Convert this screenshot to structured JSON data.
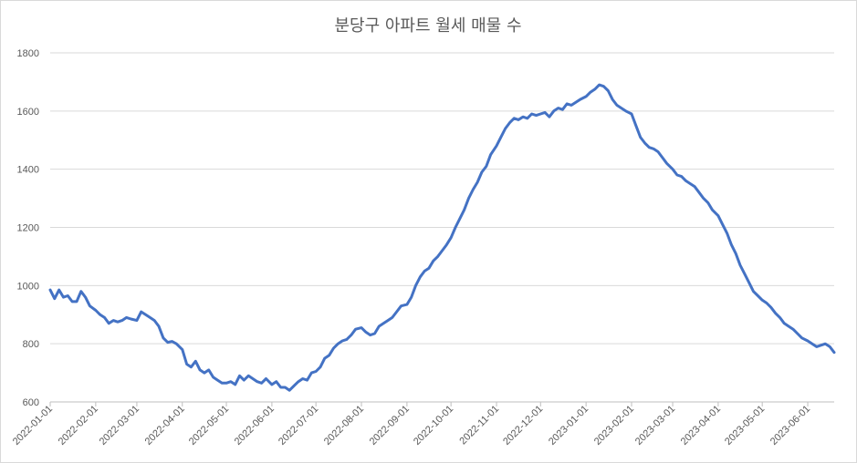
{
  "chart_data": {
    "type": "line",
    "title": "분당구 아파트 월세 매물 수",
    "xlabel": "",
    "ylabel": "",
    "ylim": [
      600,
      1800
    ],
    "yticks": [
      600,
      800,
      1000,
      1200,
      1400,
      1600,
      1800
    ],
    "xticks": [
      "2022-01-01",
      "2022-02-01",
      "2022-03-01",
      "2022-04-01",
      "2022-05-01",
      "2022-06-01",
      "2022-07-01",
      "2022-08-01",
      "2022-09-01",
      "2022-10-01",
      "2022-11-01",
      "2022-12-01",
      "2023-01-01",
      "2023-02-01",
      "2023-03-01",
      "2023-04-01",
      "2023-05-01",
      "2023-06-01"
    ],
    "grid": true,
    "legend": "none",
    "line_color": "#4472C4",
    "series": [
      {
        "name": "",
        "points": [
          [
            "2022-01-01",
            985
          ],
          [
            "2022-01-04",
            955
          ],
          [
            "2022-01-07",
            985
          ],
          [
            "2022-01-10",
            960
          ],
          [
            "2022-01-13",
            965
          ],
          [
            "2022-01-16",
            945
          ],
          [
            "2022-01-19",
            945
          ],
          [
            "2022-01-22",
            980
          ],
          [
            "2022-01-25",
            960
          ],
          [
            "2022-01-28",
            930
          ],
          [
            "2022-02-01",
            915
          ],
          [
            "2022-02-04",
            900
          ],
          [
            "2022-02-07",
            890
          ],
          [
            "2022-02-10",
            870
          ],
          [
            "2022-02-13",
            880
          ],
          [
            "2022-02-16",
            875
          ],
          [
            "2022-02-19",
            880
          ],
          [
            "2022-02-22",
            890
          ],
          [
            "2022-02-25",
            885
          ],
          [
            "2022-03-01",
            880
          ],
          [
            "2022-03-04",
            910
          ],
          [
            "2022-03-07",
            900
          ],
          [
            "2022-03-10",
            890
          ],
          [
            "2022-03-13",
            880
          ],
          [
            "2022-03-16",
            860
          ],
          [
            "2022-03-19",
            820
          ],
          [
            "2022-03-22",
            805
          ],
          [
            "2022-03-25",
            808
          ],
          [
            "2022-03-28",
            800
          ],
          [
            "2022-04-01",
            780
          ],
          [
            "2022-04-04",
            730
          ],
          [
            "2022-04-07",
            720
          ],
          [
            "2022-04-10",
            740
          ],
          [
            "2022-04-13",
            710
          ],
          [
            "2022-04-16",
            700
          ],
          [
            "2022-04-19",
            710
          ],
          [
            "2022-04-22",
            685
          ],
          [
            "2022-04-25",
            675
          ],
          [
            "2022-04-28",
            665
          ],
          [
            "2022-05-01",
            665
          ],
          [
            "2022-05-04",
            670
          ],
          [
            "2022-05-07",
            660
          ],
          [
            "2022-05-10",
            690
          ],
          [
            "2022-05-13",
            675
          ],
          [
            "2022-05-16",
            690
          ],
          [
            "2022-05-19",
            680
          ],
          [
            "2022-05-22",
            670
          ],
          [
            "2022-05-25",
            665
          ],
          [
            "2022-05-28",
            680
          ],
          [
            "2022-06-01",
            660
          ],
          [
            "2022-06-04",
            670
          ],
          [
            "2022-06-07",
            650
          ],
          [
            "2022-06-10",
            650
          ],
          [
            "2022-06-13",
            640
          ],
          [
            "2022-06-16",
            655
          ],
          [
            "2022-06-19",
            670
          ],
          [
            "2022-06-22",
            680
          ],
          [
            "2022-06-25",
            675
          ],
          [
            "2022-06-28",
            700
          ],
          [
            "2022-07-01",
            705
          ],
          [
            "2022-07-04",
            720
          ],
          [
            "2022-07-07",
            750
          ],
          [
            "2022-07-10",
            760
          ],
          [
            "2022-07-13",
            785
          ],
          [
            "2022-07-16",
            800
          ],
          [
            "2022-07-19",
            810
          ],
          [
            "2022-07-22",
            815
          ],
          [
            "2022-07-25",
            830
          ],
          [
            "2022-07-28",
            850
          ],
          [
            "2022-08-01",
            855
          ],
          [
            "2022-08-04",
            840
          ],
          [
            "2022-08-07",
            830
          ],
          [
            "2022-08-10",
            835
          ],
          [
            "2022-08-13",
            860
          ],
          [
            "2022-08-16",
            870
          ],
          [
            "2022-08-19",
            880
          ],
          [
            "2022-08-22",
            890
          ],
          [
            "2022-08-25",
            910
          ],
          [
            "2022-08-28",
            930
          ],
          [
            "2022-09-01",
            935
          ],
          [
            "2022-09-04",
            960
          ],
          [
            "2022-09-07",
            1000
          ],
          [
            "2022-09-10",
            1030
          ],
          [
            "2022-09-13",
            1050
          ],
          [
            "2022-09-16",
            1060
          ],
          [
            "2022-09-19",
            1085
          ],
          [
            "2022-09-22",
            1100
          ],
          [
            "2022-09-25",
            1120
          ],
          [
            "2022-09-28",
            1140
          ],
          [
            "2022-10-01",
            1165
          ],
          [
            "2022-10-04",
            1200
          ],
          [
            "2022-10-07",
            1230
          ],
          [
            "2022-10-10",
            1260
          ],
          [
            "2022-10-13",
            1300
          ],
          [
            "2022-10-16",
            1330
          ],
          [
            "2022-10-19",
            1355
          ],
          [
            "2022-10-22",
            1390
          ],
          [
            "2022-10-25",
            1410
          ],
          [
            "2022-10-28",
            1450
          ],
          [
            "2022-11-01",
            1480
          ],
          [
            "2022-11-04",
            1510
          ],
          [
            "2022-11-07",
            1540
          ],
          [
            "2022-11-10",
            1560
          ],
          [
            "2022-11-13",
            1575
          ],
          [
            "2022-11-16",
            1570
          ],
          [
            "2022-11-19",
            1580
          ],
          [
            "2022-11-22",
            1575
          ],
          [
            "2022-11-25",
            1590
          ],
          [
            "2022-11-28",
            1585
          ],
          [
            "2022-12-01",
            1590
          ],
          [
            "2022-12-04",
            1595
          ],
          [
            "2022-12-07",
            1580
          ],
          [
            "2022-12-10",
            1600
          ],
          [
            "2022-12-13",
            1610
          ],
          [
            "2022-12-16",
            1605
          ],
          [
            "2022-12-19",
            1625
          ],
          [
            "2022-12-22",
            1620
          ],
          [
            "2022-12-25",
            1630
          ],
          [
            "2022-12-28",
            1640
          ],
          [
            "2023-01-01",
            1650
          ],
          [
            "2023-01-04",
            1665
          ],
          [
            "2023-01-07",
            1675
          ],
          [
            "2023-01-10",
            1690
          ],
          [
            "2023-01-13",
            1685
          ],
          [
            "2023-01-16",
            1670
          ],
          [
            "2023-01-19",
            1640
          ],
          [
            "2023-01-22",
            1620
          ],
          [
            "2023-01-25",
            1610
          ],
          [
            "2023-01-28",
            1600
          ],
          [
            "2023-02-01",
            1590
          ],
          [
            "2023-02-04",
            1550
          ],
          [
            "2023-02-07",
            1510
          ],
          [
            "2023-02-10",
            1490
          ],
          [
            "2023-02-13",
            1475
          ],
          [
            "2023-02-16",
            1470
          ],
          [
            "2023-02-19",
            1460
          ],
          [
            "2023-02-22",
            1440
          ],
          [
            "2023-02-25",
            1420
          ],
          [
            "2023-03-01",
            1400
          ],
          [
            "2023-03-04",
            1380
          ],
          [
            "2023-03-07",
            1375
          ],
          [
            "2023-03-10",
            1360
          ],
          [
            "2023-03-13",
            1350
          ],
          [
            "2023-03-16",
            1340
          ],
          [
            "2023-03-19",
            1320
          ],
          [
            "2023-03-22",
            1300
          ],
          [
            "2023-03-25",
            1285
          ],
          [
            "2023-03-28",
            1260
          ],
          [
            "2023-04-01",
            1240
          ],
          [
            "2023-04-04",
            1210
          ],
          [
            "2023-04-07",
            1180
          ],
          [
            "2023-04-10",
            1140
          ],
          [
            "2023-04-13",
            1110
          ],
          [
            "2023-04-16",
            1070
          ],
          [
            "2023-04-19",
            1040
          ],
          [
            "2023-04-22",
            1010
          ],
          [
            "2023-04-25",
            980
          ],
          [
            "2023-04-28",
            965
          ],
          [
            "2023-05-01",
            950
          ],
          [
            "2023-05-04",
            940
          ],
          [
            "2023-05-07",
            925
          ],
          [
            "2023-05-10",
            905
          ],
          [
            "2023-05-13",
            890
          ],
          [
            "2023-05-16",
            870
          ],
          [
            "2023-05-19",
            860
          ],
          [
            "2023-05-22",
            850
          ],
          [
            "2023-05-25",
            835
          ],
          [
            "2023-05-28",
            820
          ],
          [
            "2023-06-01",
            810
          ],
          [
            "2023-06-04",
            800
          ],
          [
            "2023-06-07",
            790
          ],
          [
            "2023-06-10",
            795
          ],
          [
            "2023-06-13",
            800
          ],
          [
            "2023-06-16",
            790
          ],
          [
            "2023-06-19",
            770
          ]
        ]
      }
    ]
  }
}
